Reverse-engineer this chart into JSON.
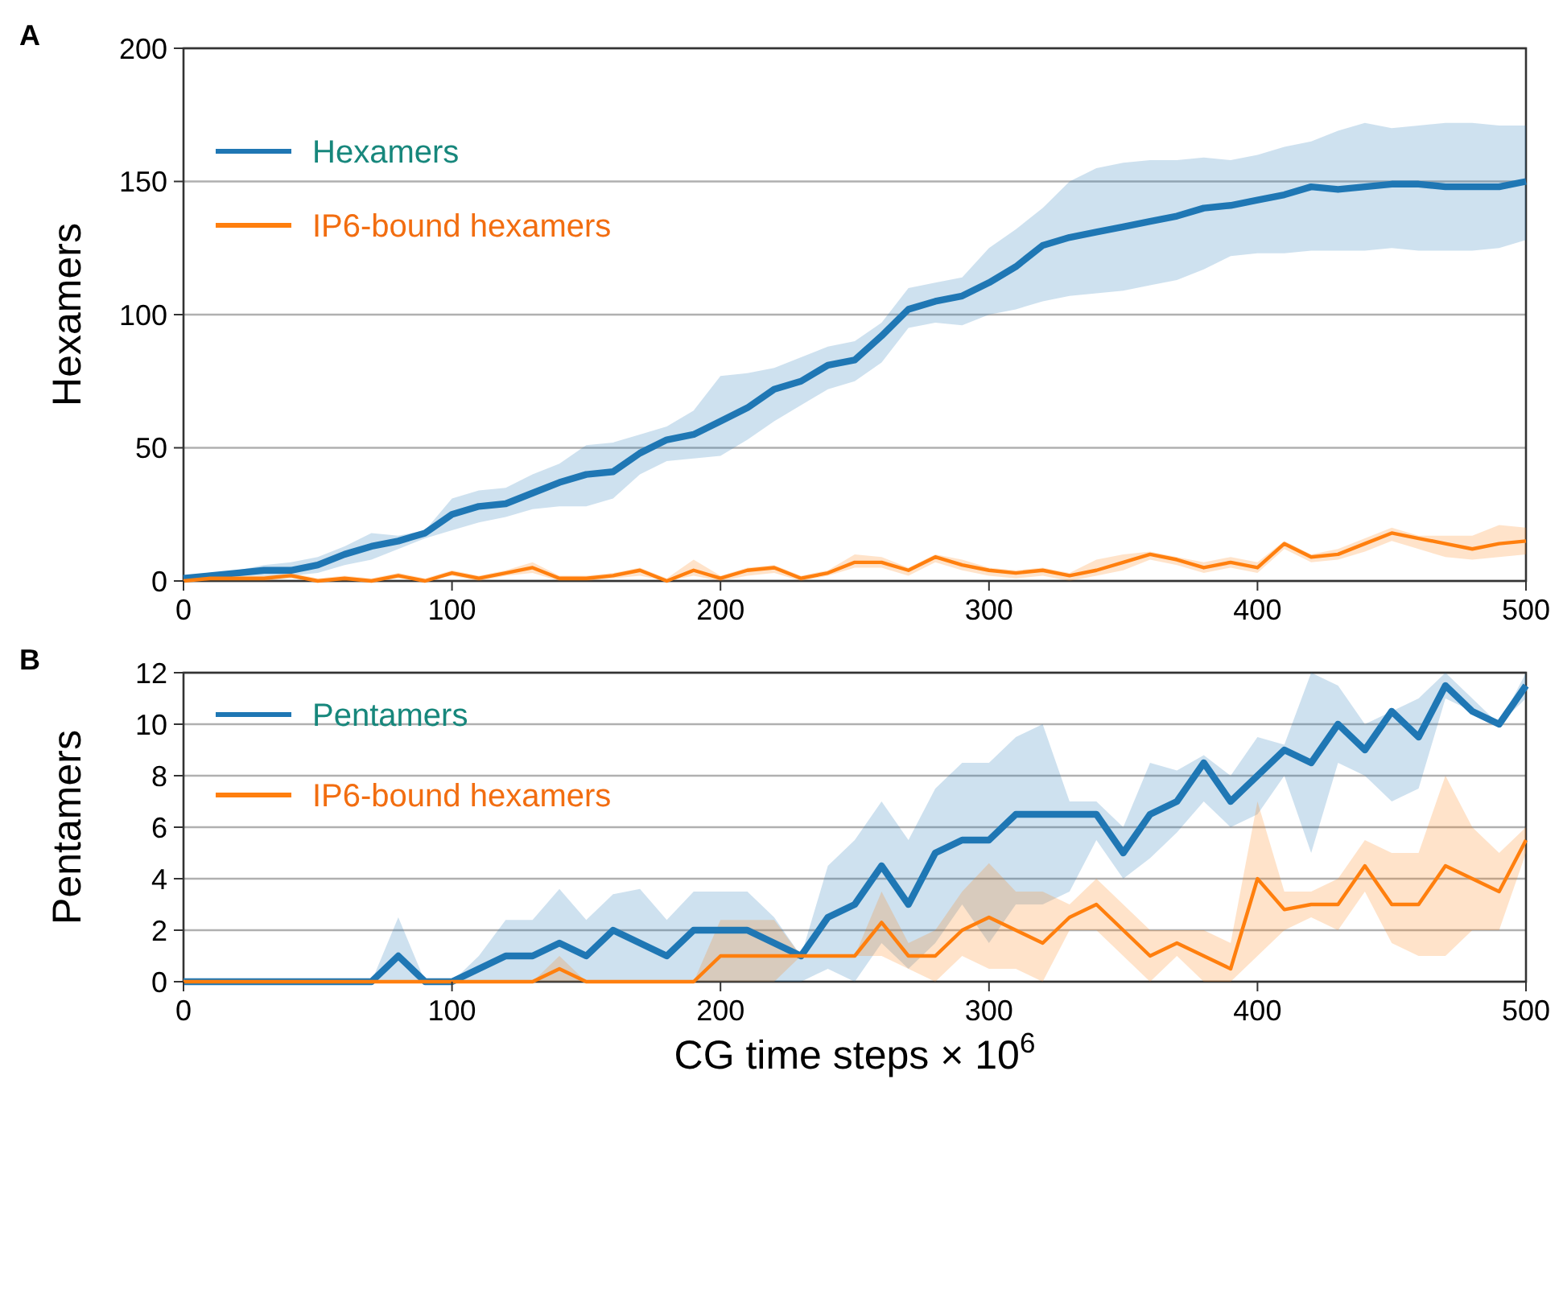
{
  "chart_data": [
    {
      "type": "line",
      "title": "A",
      "ylabel": "Hexamers",
      "x": [
        0,
        10,
        20,
        30,
        40,
        50,
        60,
        70,
        80,
        90,
        100,
        110,
        120,
        130,
        140,
        150,
        160,
        170,
        180,
        190,
        200,
        210,
        220,
        230,
        240,
        250,
        260,
        270,
        280,
        290,
        300,
        310,
        320,
        330,
        340,
        350,
        360,
        370,
        380,
        390,
        400,
        410,
        420,
        430,
        440,
        450,
        460,
        470,
        480,
        490,
        500
      ],
      "xlim": [
        0,
        500
      ],
      "xticks": [
        0,
        100,
        200,
        300,
        400,
        500
      ],
      "ylim": [
        0,
        200
      ],
      "yticks": [
        0,
        50,
        100,
        150,
        200
      ],
      "grid": "y",
      "legend": "top left",
      "series": [
        {
          "name": "Hexamers",
          "color": "#1f77b4",
          "values": [
            1,
            2,
            3,
            4,
            4,
            6,
            10,
            13,
            15,
            18,
            25,
            28,
            29,
            33,
            37,
            40,
            41,
            48,
            53,
            55,
            60,
            65,
            72,
            75,
            81,
            83,
            92,
            102,
            105,
            107,
            112,
            118,
            126,
            129,
            131,
            133,
            135,
            137,
            140,
            141,
            143,
            145,
            148,
            147,
            148,
            149,
            149,
            148,
            148,
            148,
            150
          ],
          "lower": [
            0,
            1,
            2,
            2,
            2,
            3,
            6,
            8,
            12,
            16,
            19,
            22,
            24,
            27,
            28,
            28,
            31,
            40,
            45,
            46,
            47,
            53,
            60,
            66,
            72,
            75,
            82,
            95,
            97,
            96,
            100,
            102,
            105,
            107,
            108,
            109,
            111,
            113,
            117,
            122,
            123,
            123,
            124,
            124,
            124,
            125,
            124,
            124,
            124,
            125,
            128
          ],
          "upper": [
            1,
            3,
            4,
            6,
            7,
            9,
            13,
            18,
            17,
            19,
            31,
            34,
            35,
            40,
            44,
            51,
            52,
            55,
            58,
            64,
            77,
            78,
            80,
            84,
            88,
            90,
            97,
            110,
            112,
            114,
            125,
            132,
            140,
            150,
            155,
            157,
            158,
            158,
            159,
            158,
            160,
            163,
            165,
            169,
            172,
            170,
            171,
            172,
            172,
            171,
            171
          ]
        },
        {
          "name": "IP6-bound hexamers",
          "color": "#ff7f0e",
          "values": [
            0,
            1,
            1,
            1,
            2,
            0,
            1,
            0,
            2,
            0,
            3,
            1,
            3,
            5,
            1,
            1,
            2,
            4,
            0,
            4,
            1,
            4,
            5,
            1,
            3,
            7,
            7,
            4,
            9,
            6,
            4,
            3,
            4,
            2,
            4,
            7,
            10,
            8,
            5,
            7,
            5,
            14,
            9,
            10,
            14,
            18,
            16,
            14,
            12,
            14,
            15
          ],
          "lower": [
            0,
            0,
            0,
            0,
            1,
            0,
            0,
            0,
            1,
            0,
            2,
            0,
            2,
            3,
            0,
            0,
            1,
            2,
            0,
            2,
            0,
            2,
            3,
            0,
            2,
            5,
            5,
            2,
            7,
            4,
            2,
            1,
            2,
            0,
            2,
            4,
            8,
            6,
            3,
            5,
            3,
            12,
            7,
            8,
            11,
            15,
            12,
            9,
            8,
            9,
            10
          ],
          "upper": [
            1,
            2,
            2,
            2,
            3,
            1,
            2,
            1,
            3,
            1,
            4,
            2,
            4,
            7,
            2,
            2,
            3,
            5,
            1,
            8,
            2,
            5,
            6,
            2,
            4,
            10,
            9,
            5,
            10,
            8,
            5,
            4,
            5,
            3,
            8,
            10,
            11,
            9,
            7,
            9,
            7,
            15,
            10,
            12,
            16,
            20,
            17,
            17,
            17,
            21,
            20
          ]
        }
      ]
    },
    {
      "type": "line",
      "title": "B",
      "xlabel": "CG time steps × 10$^{6}$",
      "ylabel": "Pentamers",
      "x": [
        0,
        10,
        20,
        30,
        40,
        50,
        60,
        70,
        80,
        90,
        100,
        110,
        120,
        130,
        140,
        150,
        160,
        170,
        180,
        190,
        200,
        210,
        220,
        230,
        240,
        250,
        260,
        270,
        280,
        290,
        300,
        310,
        320,
        330,
        340,
        350,
        360,
        370,
        380,
        390,
        400,
        410,
        420,
        430,
        440,
        450,
        460,
        470,
        480,
        490,
        500
      ],
      "xlim": [
        0,
        500
      ],
      "xticks": [
        0,
        100,
        200,
        300,
        400,
        500
      ],
      "ylim": [
        0,
        12
      ],
      "yticks": [
        0,
        2,
        4,
        6,
        8,
        10,
        12
      ],
      "grid": "y",
      "legend": "top left",
      "series": [
        {
          "name": "Pentamers",
          "color": "#1f77b4",
          "values": [
            0,
            0,
            0,
            0,
            0,
            0,
            0,
            0,
            1,
            0,
            0,
            0.5,
            1,
            1,
            1.5,
            1,
            2,
            1.5,
            1,
            2,
            2,
            2,
            1.5,
            1,
            2.5,
            3,
            4.5,
            3,
            5,
            5.5,
            5.5,
            6.5,
            6.5,
            6.5,
            6.5,
            5,
            6.5,
            7,
            8.5,
            7,
            8,
            9,
            8.5,
            10,
            9,
            10.5,
            9.5,
            11.5,
            10.5,
            10,
            11.5
          ],
          "lower": [
            0,
            0,
            0,
            0,
            0,
            0,
            0,
            0,
            0,
            0,
            0,
            0,
            0,
            0,
            0,
            0,
            0,
            0,
            0,
            0,
            0,
            0,
            0,
            0,
            0.5,
            0,
            1.5,
            0.5,
            1.5,
            3,
            1.5,
            3,
            3,
            3.5,
            5.5,
            4,
            4.8,
            5.8,
            7,
            6,
            6.5,
            8,
            5,
            8.5,
            8,
            7,
            7.5,
            11,
            10.5,
            10,
            11
          ],
          "upper": [
            0,
            0,
            0,
            0,
            0,
            0,
            0,
            0,
            2.5,
            0,
            0,
            1,
            2.4,
            2.4,
            3.6,
            2.4,
            3.4,
            3.6,
            2.4,
            3.5,
            3.5,
            3.5,
            2.5,
            1,
            4.5,
            5.5,
            7,
            5.5,
            7.5,
            8.5,
            8.5,
            9.5,
            10,
            7,
            7,
            6,
            8.5,
            8.2,
            8.8,
            8,
            9.5,
            9.2,
            12,
            11.5,
            10,
            10.5,
            11,
            12,
            11,
            10,
            12
          ]
        },
        {
          "name": "IP6-bound hexamers",
          "color": "#ff7f0e",
          "values": [
            0,
            0,
            0,
            0,
            0,
            0,
            0,
            0,
            0,
            0,
            0,
            0,
            0,
            0,
            0.5,
            0,
            0,
            0,
            0,
            0,
            1,
            1,
            1,
            1,
            1,
            1,
            2.3,
            1,
            1,
            2,
            2.5,
            2,
            1.5,
            2.5,
            3,
            2,
            1,
            1.5,
            1,
            0.5,
            4,
            2.8,
            3,
            3,
            4.5,
            3,
            3,
            4.5,
            4,
            3.5,
            5.5
          ],
          "lower": [
            0,
            0,
            0,
            0,
            0,
            0,
            0,
            0,
            0,
            0,
            0,
            0,
            0,
            0,
            0,
            0,
            0,
            0,
            0,
            0,
            0,
            0,
            0,
            1,
            1,
            1,
            1,
            0.5,
            0,
            1,
            0.5,
            0.5,
            0,
            2,
            2,
            1,
            0,
            1,
            0,
            0,
            1,
            2,
            2.5,
            2,
            3.5,
            1.5,
            1,
            1,
            2,
            2,
            5
          ],
          "upper": [
            0,
            0,
            0,
            0,
            0,
            0,
            0,
            0,
            0,
            0,
            0,
            0,
            0,
            0,
            1,
            0,
            0,
            0,
            0,
            0,
            2.4,
            2.4,
            2.4,
            1,
            1,
            1,
            3.5,
            1.5,
            2,
            3.5,
            4.6,
            3.5,
            3.5,
            3,
            4,
            3,
            2,
            2,
            2,
            1.5,
            7,
            3.5,
            3.5,
            4,
            5.5,
            5,
            5,
            8,
            6,
            5,
            6
          ]
        }
      ]
    }
  ]
}
